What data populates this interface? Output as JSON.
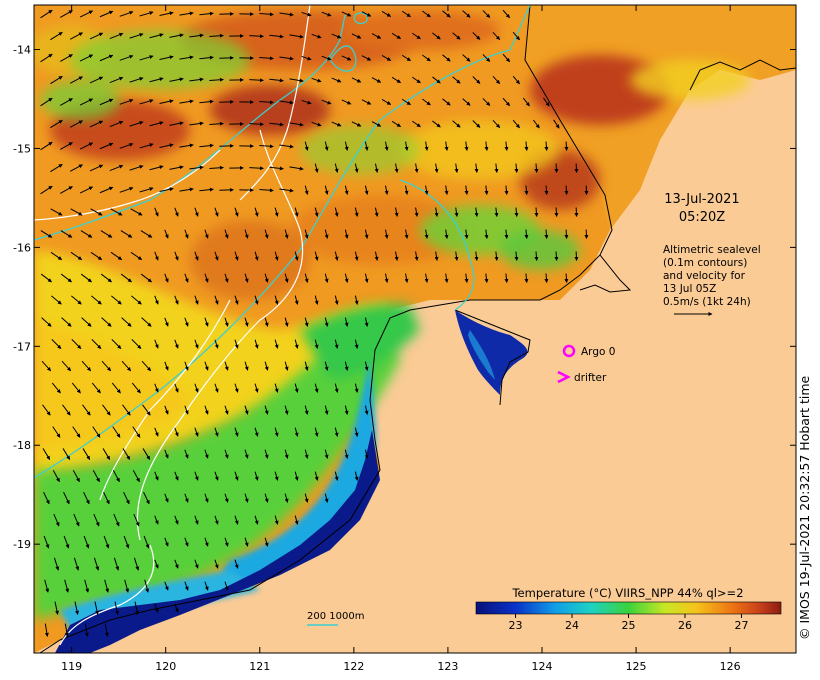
{
  "map": {
    "x_range": [
      118.6,
      126.7
    ],
    "y_range": [
      -20.1,
      -13.55
    ],
    "x_ticks": [
      "119",
      "120",
      "121",
      "122",
      "123",
      "124",
      "125",
      "126"
    ],
    "y_ticks": [
      "-14",
      "-15",
      "-16",
      "-17",
      "-18",
      "-19"
    ],
    "y_tick_values": [
      -14,
      -15,
      -16,
      -17,
      -18,
      -19
    ],
    "x_tick_values": [
      119,
      120,
      121,
      122,
      123,
      124,
      125,
      126
    ],
    "land_color": "#fbcb96",
    "colors": {
      "cold": "#0a1f9e",
      "cool": "#17a8df",
      "mid": "#2dcf47",
      "warm": "#f2e21a",
      "hot": "#f07816",
      "hottest": "#a8321a",
      "contour": "#ffffff",
      "bathymetry": "#3cd0d0",
      "marker": "#ff00ff"
    }
  },
  "annotations": {
    "date": "13-Jul-2021",
    "time": "05:20Z",
    "altimetry_line1": "Altimetric sealevel",
    "altimetry_line2": "(0.1m contours)",
    "altimetry_line3": "and velocity for",
    "altimetry_line4": "13 Jul 05Z",
    "altimetry_line5": "0.5m/s (1kt 24h)",
    "argo_label": "Argo 0",
    "drifter_label": "drifter",
    "depth_scale_label": "200  1000m"
  },
  "colorbar": {
    "title": "Temperature (°C) VIIRS_NPP 44% ql>=2",
    "ticks": [
      "23",
      "24",
      "25",
      "26",
      "27"
    ],
    "tick_values": [
      23,
      24,
      25,
      26,
      27
    ],
    "range": [
      22.3,
      27.7
    ]
  },
  "credit": "© IMOS 19-Jul-2021 20:32:57 Hobart time"
}
